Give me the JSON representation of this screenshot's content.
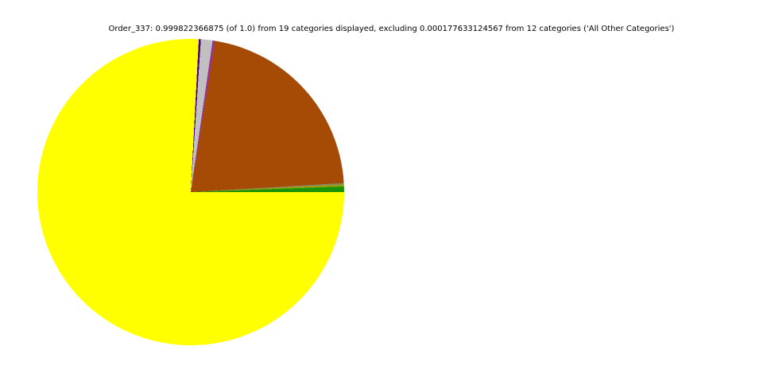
{
  "page": {
    "background_color": "#ffffff"
  },
  "chart_data": {
    "type": "pie",
    "title": "Order_337: 0.999822366875 (of 1.0) from 19 categories displayed, excluding 0.000177633124567 from 12 categories ('All Other Categories')",
    "displayed_total": 0.999822366875,
    "displayed_total_of": 1.0,
    "displayed_categories_count": 19,
    "excluded_total": 0.000177633124567,
    "excluded_categories_count": 12,
    "excluded_group_label": "All Other Categories",
    "legend": "none",
    "labels_on_wedges": false,
    "conic_from_deg": 90,
    "direction": "clockwise",
    "wedges": [
      {
        "label": "wedge-yellow",
        "color": "#ffff00",
        "start_deg": 0.0,
        "end_deg": 273.0,
        "fraction": 0.7583
      },
      {
        "label": "wedge-indigo",
        "color": "#4b0082",
        "start_deg": 273.0,
        "end_deg": 273.8,
        "fraction": 0.0022
      },
      {
        "label": "wedge-silver",
        "color": "#c0c0c0",
        "start_deg": 273.8,
        "end_deg": 278.2,
        "fraction": 0.0122
      },
      {
        "label": "wedge-magenta",
        "color": "#993399",
        "start_deg": 278.2,
        "end_deg": 279.1,
        "fraction": 0.0025
      },
      {
        "label": "wedge-brown",
        "color": "#a54b05",
        "start_deg": 279.1,
        "end_deg": 356.6,
        "fraction": 0.2153
      },
      {
        "label": "wedge-gray-olive",
        "color": "#8a8a62",
        "start_deg": 356.6,
        "end_deg": 357.2,
        "fraction": 0.0017
      },
      {
        "label": "wedge-olive",
        "color": "#9aa005",
        "start_deg": 357.2,
        "end_deg": 357.9,
        "fraction": 0.0019
      },
      {
        "label": "wedge-green",
        "color": "#1a9306",
        "start_deg": 357.9,
        "end_deg": 360.0,
        "fraction": 0.0058
      }
    ]
  }
}
